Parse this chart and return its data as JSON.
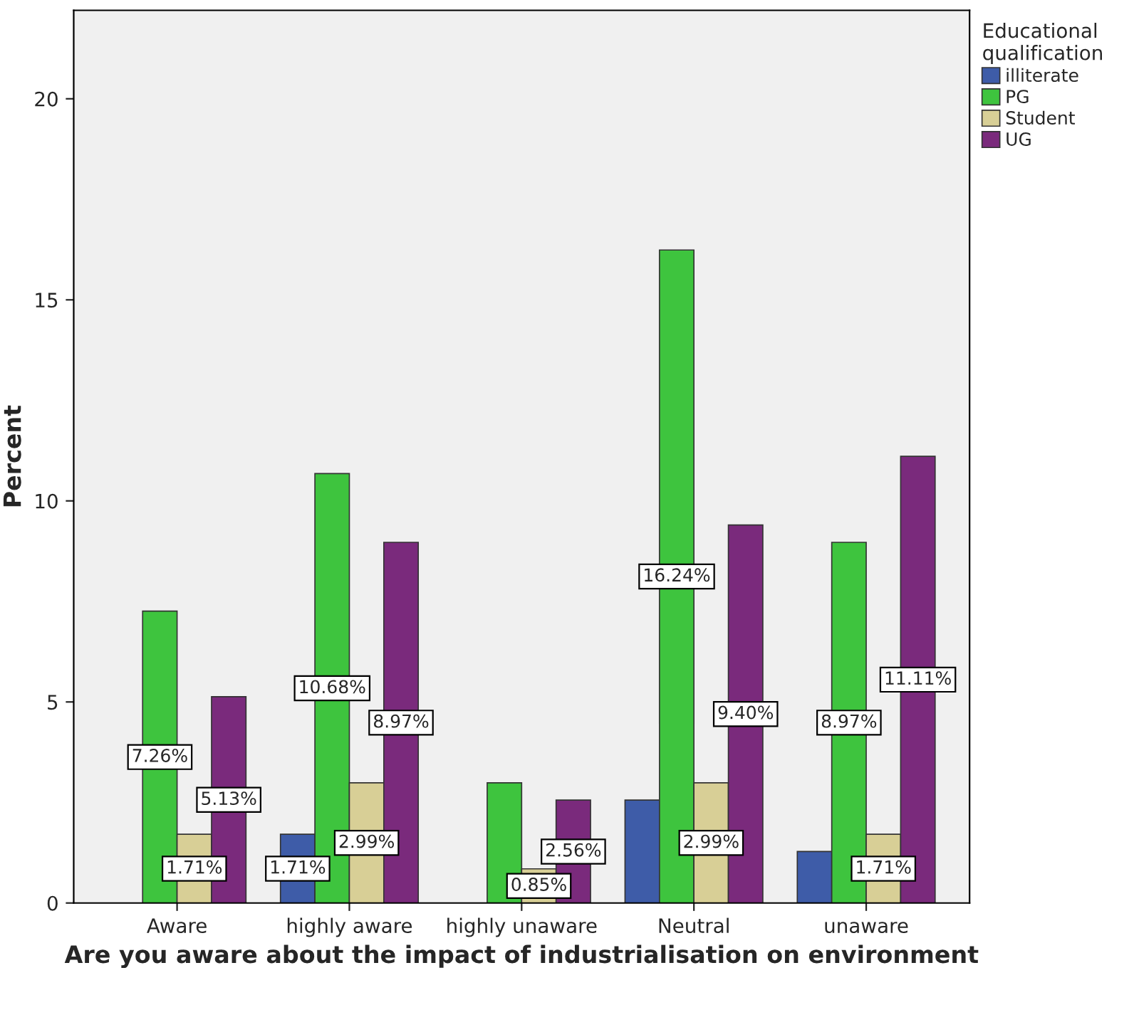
{
  "chart_data": {
    "type": "bar",
    "categories": [
      "Aware",
      "highly aware",
      "highly unaware",
      "Neutral",
      "unaware"
    ],
    "xlabel": "Are you aware about the impact of industrialisation on environment",
    "ylabel": "Percent",
    "legend_title": "Educational qualification",
    "legend": "right",
    "ylim": [
      0,
      22.2
    ],
    "yticks": [
      0,
      5,
      10,
      15,
      20
    ],
    "grid": false,
    "series": [
      {
        "name": "illiterate",
        "color": "#3e5ca8",
        "values": [
          null,
          1.71,
          null,
          2.56,
          1.28
        ],
        "value_labels": [
          null,
          "1.71%",
          null,
          null,
          null
        ]
      },
      {
        "name": "PG",
        "color": "#3ec43e",
        "values": [
          7.26,
          10.68,
          2.99,
          16.24,
          8.97
        ],
        "value_labels": [
          "7.26%",
          "10.68%",
          null,
          "16.24%",
          "8.97%"
        ]
      },
      {
        "name": "Student",
        "color": "#d8cf96",
        "values": [
          1.71,
          2.99,
          0.85,
          2.99,
          1.71
        ],
        "value_labels": [
          "1.71%",
          "2.99%",
          "0.85%",
          "2.99%",
          "1.71%"
        ]
      },
      {
        "name": "UG",
        "color": "#7a2a7c",
        "values": [
          5.13,
          8.97,
          2.56,
          9.4,
          11.11
        ],
        "value_labels": [
          "5.13%",
          "8.97%",
          "2.56%",
          "9.40%",
          "11.11%"
        ]
      }
    ]
  }
}
